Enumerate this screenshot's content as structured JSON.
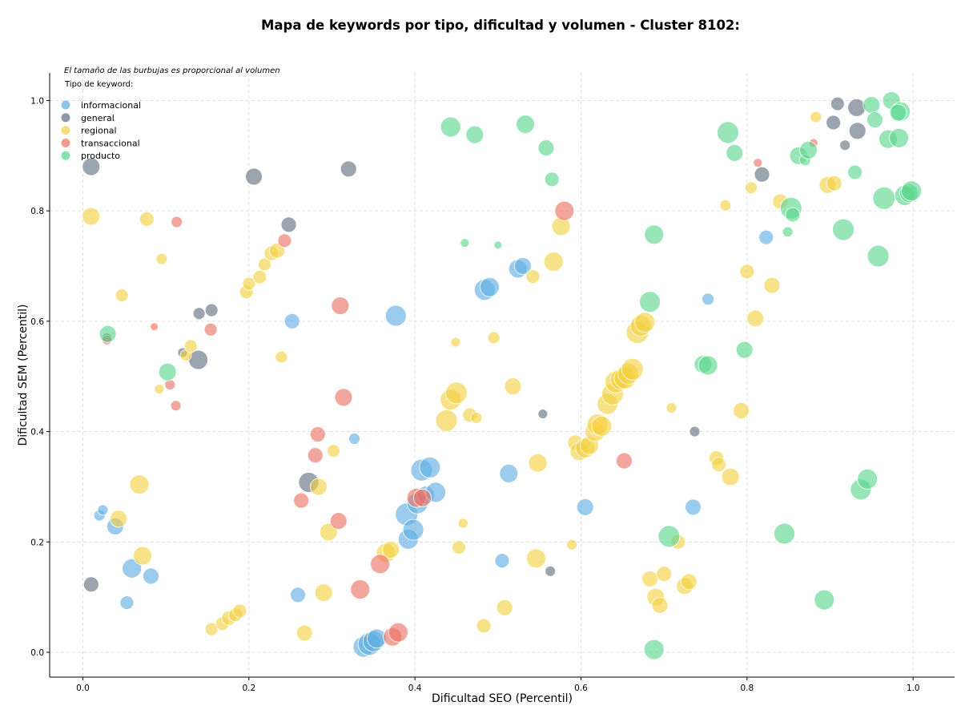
{
  "chart_data": {
    "type": "scatter",
    "title": "Mapa de keywords por tipo, dificultad y volumen - Cluster 8102:",
    "xlabel": "Dificultad SEO (Percentil)",
    "ylabel": "Dificultad SEM (Percentil)",
    "annotation": "El tamaño de las burbujas es proporcional al volumen",
    "legend_title": "Tipo de keyword:",
    "legend_position": "top-left",
    "grid": true,
    "xlim": [
      -0.04,
      1.05
    ],
    "ylim": [
      -0.045,
      1.05
    ],
    "x_ticks": [
      "0.0",
      "0.2",
      "0.4",
      "0.6",
      "0.8",
      "1.0"
    ],
    "y_ticks": [
      "0.0",
      "0.2",
      "0.4",
      "0.6",
      "0.8",
      "1.0"
    ],
    "series": [
      {
        "name": "informacional",
        "color": "#5dade2",
        "points": [
          [
            0.02,
            0.248,
            14
          ],
          [
            0.024,
            0.258,
            13
          ],
          [
            0.039,
            0.228,
            21
          ],
          [
            0.053,
            0.09,
            17
          ],
          [
            0.059,
            0.152,
            24
          ],
          [
            0.082,
            0.138,
            20
          ],
          [
            0.252,
            0.6,
            19
          ],
          [
            0.259,
            0.104,
            19
          ],
          [
            0.327,
            0.387,
            14
          ],
          [
            0.338,
            0.01,
            26
          ],
          [
            0.345,
            0.015,
            28
          ],
          [
            0.35,
            0.02,
            26
          ],
          [
            0.354,
            0.025,
            24
          ],
          [
            0.377,
            0.61,
            26
          ],
          [
            0.39,
            0.25,
            28
          ],
          [
            0.392,
            0.205,
            25
          ],
          [
            0.398,
            0.222,
            26
          ],
          [
            0.403,
            0.27,
            26
          ],
          [
            0.408,
            0.33,
            27
          ],
          [
            0.413,
            0.285,
            22
          ],
          [
            0.418,
            0.335,
            26
          ],
          [
            0.425,
            0.29,
            25
          ],
          [
            0.484,
            0.657,
            26
          ],
          [
            0.49,
            0.662,
            24
          ],
          [
            0.505,
            0.166,
            18
          ],
          [
            0.513,
            0.324,
            23
          ],
          [
            0.524,
            0.695,
            23
          ],
          [
            0.53,
            0.7,
            21
          ],
          [
            0.605,
            0.263,
            21
          ],
          [
            0.753,
            0.64,
            15
          ],
          [
            0.735,
            0.263,
            20
          ],
          [
            0.823,
            0.752,
            18
          ]
        ]
      },
      {
        "name": "general",
        "color": "#5d6d7e",
        "points": [
          [
            0.01,
            0.88,
            22
          ],
          [
            0.01,
            0.123,
            19
          ],
          [
            0.029,
            0.57,
            12
          ],
          [
            0.12,
            0.543,
            12
          ],
          [
            0.14,
            0.614,
            15
          ],
          [
            0.139,
            0.53,
            24
          ],
          [
            0.155,
            0.62,
            16
          ],
          [
            0.206,
            0.862,
            21
          ],
          [
            0.248,
            0.775,
            19
          ],
          [
            0.32,
            0.876,
            20
          ],
          [
            0.272,
            0.308,
            25
          ],
          [
            0.554,
            0.432,
            12
          ],
          [
            0.563,
            0.147,
            13
          ],
          [
            0.737,
            0.4,
            13
          ],
          [
            0.818,
            0.866,
            19
          ],
          [
            0.904,
            0.96,
            18
          ],
          [
            0.909,
            0.994,
            17
          ],
          [
            0.918,
            0.919,
            13
          ],
          [
            0.933,
            0.945,
            21
          ],
          [
            0.932,
            0.987,
            22
          ]
        ]
      },
      {
        "name": "regional",
        "color": "#f4d03f",
        "points": [
          [
            0.01,
            0.79,
            22
          ],
          [
            0.043,
            0.242,
            21
          ],
          [
            0.047,
            0.647,
            16
          ],
          [
            0.068,
            0.304,
            24
          ],
          [
            0.072,
            0.175,
            23
          ],
          [
            0.077,
            0.785,
            18
          ],
          [
            0.092,
            0.477,
            12
          ],
          [
            0.095,
            0.713,
            14
          ],
          [
            0.124,
            0.538,
            14
          ],
          [
            0.13,
            0.555,
            16
          ],
          [
            0.155,
            0.042,
            16
          ],
          [
            0.168,
            0.052,
            17
          ],
          [
            0.176,
            0.062,
            18
          ],
          [
            0.184,
            0.068,
            17
          ],
          [
            0.189,
            0.075,
            17
          ],
          [
            0.197,
            0.653,
            17
          ],
          [
            0.2,
            0.668,
            16
          ],
          [
            0.213,
            0.68,
            17
          ],
          [
            0.219,
            0.703,
            16
          ],
          [
            0.227,
            0.723,
            18
          ],
          [
            0.234,
            0.728,
            19
          ],
          [
            0.239,
            0.535,
            15
          ],
          [
            0.267,
            0.035,
            20
          ],
          [
            0.284,
            0.3,
            21
          ],
          [
            0.29,
            0.108,
            22
          ],
          [
            0.296,
            0.218,
            22
          ],
          [
            0.302,
            0.365,
            16
          ],
          [
            0.365,
            0.18,
            24
          ],
          [
            0.371,
            0.186,
            21
          ],
          [
            0.438,
            0.42,
            27
          ],
          [
            0.443,
            0.458,
            26
          ],
          [
            0.45,
            0.47,
            27
          ],
          [
            0.449,
            0.562,
            12
          ],
          [
            0.453,
            0.19,
            17
          ],
          [
            0.458,
            0.234,
            12
          ],
          [
            0.466,
            0.43,
            18
          ],
          [
            0.474,
            0.425,
            14
          ],
          [
            0.483,
            0.048,
            18
          ],
          [
            0.495,
            0.57,
            15
          ],
          [
            0.508,
            0.081,
            20
          ],
          [
            0.518,
            0.482,
            21
          ],
          [
            0.542,
            0.681,
            17
          ],
          [
            0.546,
            0.17,
            24
          ],
          [
            0.548,
            0.343,
            23
          ],
          [
            0.567,
            0.708,
            24
          ],
          [
            0.576,
            0.772,
            23
          ],
          [
            0.589,
            0.195,
            13
          ],
          [
            0.593,
            0.38,
            19
          ],
          [
            0.598,
            0.364,
            23
          ],
          [
            0.605,
            0.37,
            24
          ],
          [
            0.61,
            0.375,
            23
          ],
          [
            0.617,
            0.4,
            25
          ],
          [
            0.62,
            0.413,
            26
          ],
          [
            0.625,
            0.41,
            25
          ],
          [
            0.632,
            0.45,
            26
          ],
          [
            0.638,
            0.468,
            27
          ],
          [
            0.642,
            0.49,
            27
          ],
          [
            0.648,
            0.495,
            26
          ],
          [
            0.653,
            0.497,
            27
          ],
          [
            0.657,
            0.505,
            26
          ],
          [
            0.662,
            0.513,
            27
          ],
          [
            0.668,
            0.58,
            28
          ],
          [
            0.672,
            0.592,
            26
          ],
          [
            0.677,
            0.598,
            25
          ],
          [
            0.683,
            0.133,
            20
          ],
          [
            0.69,
            0.1,
            22
          ],
          [
            0.695,
            0.085,
            20
          ],
          [
            0.7,
            0.142,
            19
          ],
          [
            0.709,
            0.443,
            13
          ],
          [
            0.717,
            0.2,
            18
          ],
          [
            0.725,
            0.12,
            21
          ],
          [
            0.73,
            0.128,
            20
          ],
          [
            0.763,
            0.352,
            18
          ],
          [
            0.766,
            0.34,
            18
          ],
          [
            0.774,
            0.81,
            14
          ],
          [
            0.78,
            0.318,
            22
          ],
          [
            0.793,
            0.438,
            20
          ],
          [
            0.8,
            0.69,
            18
          ],
          [
            0.805,
            0.842,
            15
          ],
          [
            0.81,
            0.605,
            21
          ],
          [
            0.83,
            0.665,
            20
          ],
          [
            0.84,
            0.817,
            19
          ],
          [
            0.883,
            0.97,
            14
          ],
          [
            0.897,
            0.847,
            21
          ],
          [
            0.905,
            0.85,
            19
          ]
        ]
      },
      {
        "name": "transaccional",
        "color": "#ec7063",
        "points": [
          [
            0.029,
            0.566,
            12
          ],
          [
            0.086,
            0.59,
            10
          ],
          [
            0.105,
            0.485,
            13
          ],
          [
            0.112,
            0.447,
            13
          ],
          [
            0.113,
            0.78,
            14
          ],
          [
            0.154,
            0.585,
            16
          ],
          [
            0.243,
            0.746,
            17
          ],
          [
            0.263,
            0.275,
            19
          ],
          [
            0.28,
            0.357,
            19
          ],
          [
            0.283,
            0.395,
            19
          ],
          [
            0.308,
            0.238,
            21
          ],
          [
            0.31,
            0.628,
            22
          ],
          [
            0.314,
            0.462,
            22
          ],
          [
            0.334,
            0.114,
            24
          ],
          [
            0.358,
            0.16,
            24
          ],
          [
            0.373,
            0.028,
            23
          ],
          [
            0.38,
            0.036,
            24
          ],
          [
            0.402,
            0.28,
            24
          ],
          [
            0.409,
            0.28,
            22
          ],
          [
            0.58,
            0.8,
            24
          ],
          [
            0.652,
            0.347,
            20
          ],
          [
            0.813,
            0.887,
            11
          ],
          [
            0.88,
            0.923,
            11
          ]
        ]
      },
      {
        "name": "producto",
        "color": "#58d68d",
        "points": [
          [
            0.03,
            0.577,
            21
          ],
          [
            0.102,
            0.508,
            22
          ],
          [
            0.46,
            0.742,
            11
          ],
          [
            0.5,
            0.738,
            10
          ],
          [
            0.443,
            0.952,
            25
          ],
          [
            0.472,
            0.938,
            22
          ],
          [
            0.533,
            0.957,
            23
          ],
          [
            0.558,
            0.914,
            20
          ],
          [
            0.565,
            0.857,
            18
          ],
          [
            0.683,
            0.635,
            26
          ],
          [
            0.688,
            0.757,
            24
          ],
          [
            0.688,
            0.005,
            25
          ],
          [
            0.706,
            0.21,
            27
          ],
          [
            0.747,
            0.522,
            22
          ],
          [
            0.753,
            0.52,
            24
          ],
          [
            0.777,
            0.942,
            27
          ],
          [
            0.785,
            0.905,
            21
          ],
          [
            0.797,
            0.548,
            21
          ],
          [
            0.845,
            0.215,
            26
          ],
          [
            0.853,
            0.805,
            27
          ],
          [
            0.849,
            0.762,
            13
          ],
          [
            0.855,
            0.793,
            18
          ],
          [
            0.862,
            0.9,
            22
          ],
          [
            0.87,
            0.892,
            14
          ],
          [
            0.874,
            0.91,
            22
          ],
          [
            0.893,
            0.095,
            25
          ],
          [
            0.916,
            0.766,
            27
          ],
          [
            0.93,
            0.87,
            18
          ],
          [
            0.937,
            0.295,
            26
          ],
          [
            0.945,
            0.314,
            25
          ],
          [
            0.958,
            0.718,
            27
          ],
          [
            0.95,
            0.992,
            21
          ],
          [
            0.954,
            0.965,
            20
          ],
          [
            0.965,
            0.823,
            28
          ],
          [
            0.97,
            0.93,
            23
          ],
          [
            0.974,
            1.0,
            22
          ],
          [
            0.985,
            0.98,
            24
          ],
          [
            0.983,
            0.932,
            24
          ],
          [
            0.982,
            0.978,
            21
          ],
          [
            0.99,
            0.828,
            25
          ],
          [
            0.995,
            0.832,
            23
          ],
          [
            0.998,
            0.836,
            25
          ]
        ]
      }
    ]
  }
}
